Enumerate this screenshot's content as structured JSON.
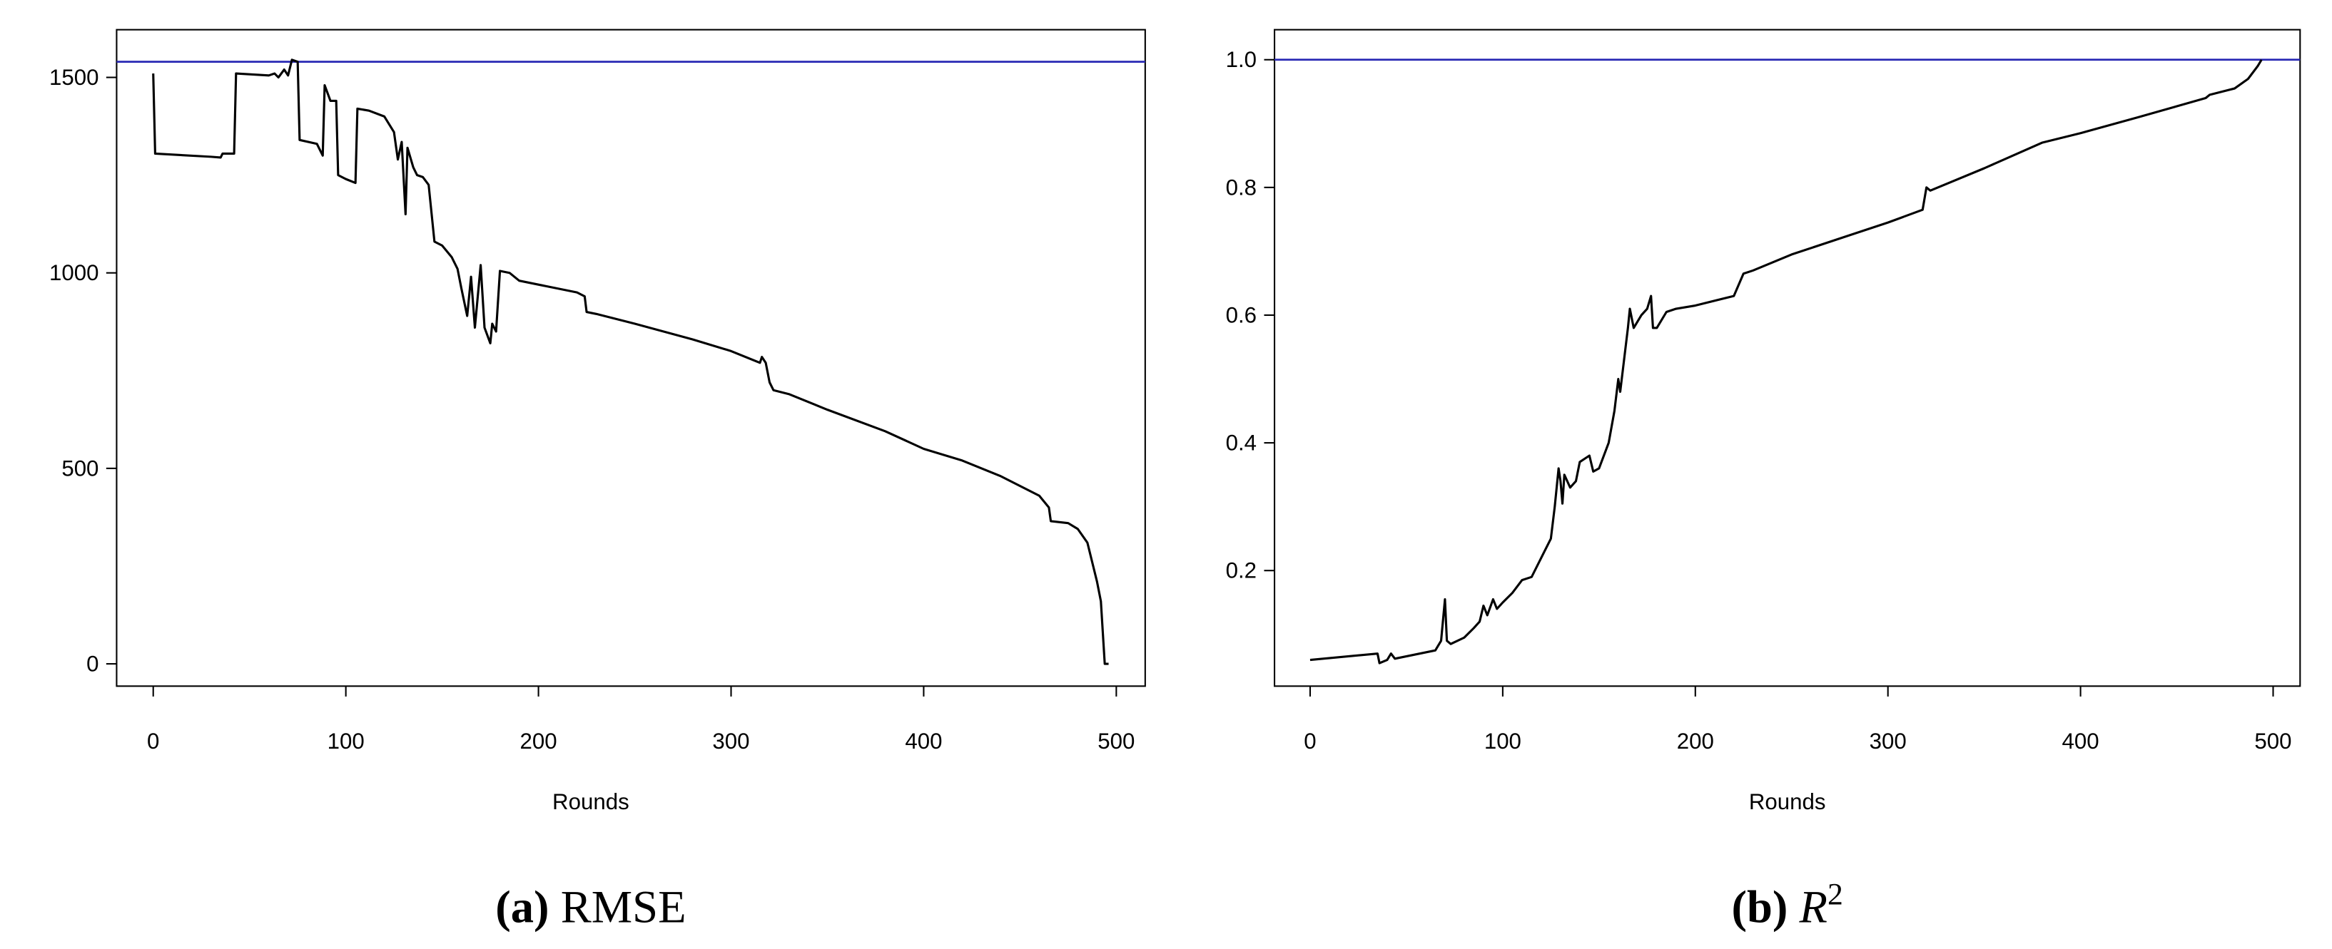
{
  "chart_data": [
    {
      "type": "line",
      "xlabel": "Rounds",
      "caption": {
        "label": "(a)",
        "metric": "RMSE"
      },
      "xlim": [
        -19,
        515
      ],
      "ylim": [
        -57,
        1622
      ],
      "xticks": [
        0,
        100,
        200,
        300,
        400,
        500
      ],
      "yticks": [
        0,
        500,
        1000,
        1500
      ],
      "hline": {
        "value": 1540,
        "color": "#2828b4"
      },
      "x": [
        0,
        1,
        30,
        35,
        36,
        42,
        43,
        60,
        63,
        65,
        68,
        70,
        72,
        75,
        76,
        85,
        88,
        89,
        92,
        95,
        96,
        100,
        105,
        106,
        112,
        120,
        125,
        127,
        129,
        131,
        132,
        135,
        137,
        140,
        143,
        146,
        150,
        155,
        158,
        160,
        163,
        165,
        167,
        170,
        172,
        175,
        176,
        178,
        180,
        185,
        190,
        200,
        220,
        224,
        225,
        230,
        250,
        280,
        300,
        315,
        316,
        318,
        320,
        322,
        330,
        350,
        380,
        400,
        420,
        440,
        460,
        465,
        466,
        475,
        480,
        485,
        488,
        490,
        492,
        494,
        496
      ],
      "series": [
        {
          "color": "#000000",
          "values": [
            1510,
            1305,
            1297,
            1295,
            1305,
            1305,
            1510,
            1505,
            1510,
            1500,
            1520,
            1505,
            1545,
            1540,
            1340,
            1330,
            1300,
            1480,
            1440,
            1440,
            1250,
            1240,
            1230,
            1420,
            1415,
            1400,
            1360,
            1290,
            1335,
            1150,
            1320,
            1270,
            1250,
            1245,
            1225,
            1080,
            1070,
            1040,
            1010,
            960,
            890,
            990,
            860,
            1020,
            860,
            820,
            870,
            850,
            1005,
            1000,
            980,
            970,
            950,
            940,
            900,
            895,
            870,
            830,
            800,
            770,
            785,
            770,
            720,
            700,
            690,
            650,
            595,
            550,
            520,
            480,
            430,
            400,
            365,
            360,
            345,
            310,
            250,
            210,
            160,
            0,
            0
          ]
        }
      ]
    },
    {
      "type": "line",
      "xlabel": "Rounds",
      "caption": {
        "label": "(b)",
        "metric": "R",
        "metric_sup": "2"
      },
      "xlim": [
        -18.5,
        514
      ],
      "ylim": [
        0.019,
        1.047
      ],
      "xticks": [
        0,
        100,
        200,
        300,
        400,
        500
      ],
      "yticks": [
        0.2,
        0.4,
        0.6,
        0.8,
        {
          "value": 1,
          "label": "1.0"
        }
      ],
      "hline": {
        "value": 1,
        "color": "#2828b4"
      },
      "x": [
        0,
        35,
        36,
        40,
        42,
        44,
        65,
        68,
        70,
        71,
        73,
        80,
        85,
        88,
        90,
        92,
        95,
        97,
        100,
        105,
        110,
        115,
        120,
        125,
        127,
        129,
        130,
        131,
        132,
        135,
        138,
        140,
        145,
        147,
        150,
        155,
        158,
        160,
        161,
        163,
        165,
        166,
        168,
        172,
        175,
        177,
        178,
        180,
        185,
        190,
        200,
        220,
        225,
        230,
        250,
        280,
        300,
        318,
        320,
        322,
        350,
        380,
        400,
        430,
        465,
        467,
        480,
        487,
        492,
        494
      ],
      "series": [
        {
          "color": "#000000",
          "values": [
            0.06,
            0.07,
            0.055,
            0.06,
            0.07,
            0.062,
            0.075,
            0.09,
            0.155,
            0.09,
            0.085,
            0.095,
            0.11,
            0.12,
            0.145,
            0.13,
            0.155,
            0.14,
            0.15,
            0.165,
            0.185,
            0.19,
            0.22,
            0.25,
            0.3,
            0.36,
            0.34,
            0.305,
            0.35,
            0.33,
            0.34,
            0.37,
            0.38,
            0.355,
            0.36,
            0.4,
            0.45,
            0.5,
            0.48,
            0.53,
            0.58,
            0.61,
            0.58,
            0.6,
            0.61,
            0.63,
            0.58,
            0.58,
            0.605,
            0.61,
            0.615,
            0.63,
            0.665,
            0.67,
            0.695,
            0.725,
            0.745,
            0.765,
            0.8,
            0.795,
            0.83,
            0.87,
            0.885,
            0.91,
            0.94,
            0.945,
            0.955,
            0.97,
            0.99,
            1.0
          ]
        }
      ]
    }
  ]
}
